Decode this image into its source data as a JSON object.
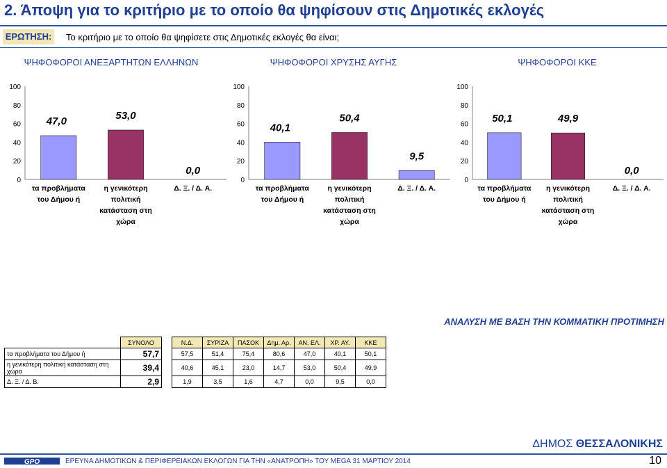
{
  "page": {
    "title": "2.  Άποψη για το κριτήριο με το οποίο θα ψηφίσουν στις Δημοτικές εκλογές",
    "question_label": "ΕΡΩΤΗΣΗ:",
    "question_text": "Το κριτήριο με το οποίο θα ψηφίσετε στις Δημοτικές εκλογές θα είναι;",
    "analysis_label": "ΑΝΑΛΥΣΗ ΜΕ ΒΑΣΗ ΤΗΝ ΚΟΜΜΑΤΙΚΗ ΠΡΟΤΙΜΗΣΗ",
    "municipality_prefix": "ΔΗΜΟΣ",
    "municipality_name": "ΘΕΣΣΑΛΟΝΙΚΗΣ",
    "footer_text": "ΕΡΕΥΝΑ ΔΗΜΟΤΙΚΩΝ & ΠΕΡΙΦΕΡΕΙΑΚΩΝ ΕΚΛΟΓΩΝ ΓΙΑ ΤΗΝ «ΑΝΑΤΡΟΠΗ» ΤΟΥ MEGA 31 ΜΑΡΤΙΟΥ 2014",
    "page_number": "10",
    "logo_text": "GPO"
  },
  "colors": {
    "accent_blue": "#1f3f94",
    "bar_local": "#9999ff",
    "bar_general": "#993366",
    "plot_bg": "#ffffff",
    "header_fill": "#f2e7b5"
  },
  "chart_data": [
    {
      "type": "bar",
      "title": "ΨΗΦΟΦΟΡΟΙ ΑΝΕΞΑΡΤΗΤΩΝ ΕΛΛΗΝΩΝ",
      "categories": [
        "τα προβλήματα του Δήμου ή",
        "η γενικότερη πολιτική κατάσταση στη χώρα",
        "Δ. Ξ. / Δ. Α."
      ],
      "values": [
        47.0,
        53.0,
        0.0
      ],
      "value_labels": [
        "47,0",
        "53,0",
        "0,0"
      ],
      "ylim": [
        0,
        100
      ],
      "yticks": [
        "0",
        "20",
        "40",
        "60",
        "80",
        "100"
      ],
      "grid": false
    },
    {
      "type": "bar",
      "title": "ΨΗΦΟΦΟΡΟΙ ΧΡΥΣΗΣ ΑΥΓΗΣ",
      "categories": [
        "τα προβλήματα του Δήμου ή",
        "η γενικότερη πολιτική κατάσταση στη χώρα",
        "Δ. Ξ. / Δ. Α."
      ],
      "values": [
        40.1,
        50.4,
        9.5
      ],
      "value_labels": [
        "40,1",
        "50,4",
        "9,5"
      ],
      "ylim": [
        0,
        100
      ],
      "yticks": [
        "0",
        "20",
        "40",
        "60",
        "80",
        "100"
      ],
      "grid": false
    },
    {
      "type": "bar",
      "title": "ΨΗΦΟΦΟΡΟΙ ΚΚΕ",
      "categories": [
        "τα προβλήματα του Δήμου ή",
        "η γενικότερη πολιτική κατάσταση στη χώρα",
        "Δ. Ξ. / Δ. Α."
      ],
      "values": [
        50.1,
        49.9,
        0.0
      ],
      "value_labels": [
        "50,1",
        "49,9",
        "0,0"
      ],
      "ylim": [
        0,
        100
      ],
      "yticks": [
        "0",
        "20",
        "40",
        "60",
        "80",
        "100"
      ],
      "grid": false
    }
  ],
  "table": {
    "columns": [
      "ΣΥΝΟΛΟ",
      "Ν.Δ.",
      "ΣΥΡΙΖΑ",
      "ΠΑΣΟΚ",
      "Δημ. Αρ.",
      "ΑΝ. ΕΛ.",
      "ΧΡ. ΑΥ.",
      "ΚΚΕ"
    ],
    "rows": [
      {
        "label": "τα προβλήματα του Δήμου ή",
        "total": "57,7",
        "values": [
          "57,5",
          "51,4",
          "75,4",
          "80,6",
          "47,0",
          "40,1",
          "50,1"
        ]
      },
      {
        "label": "η γενικότερη πολιτική κατάσταση στη χώρα",
        "total": "39,4",
        "values": [
          "40,6",
          "45,1",
          "23,0",
          "14,7",
          "53,0",
          "50,4",
          "49,9"
        ]
      },
      {
        "label": "Δ. Ξ. / Δ. Β.",
        "total": "2,9",
        "values": [
          "1,9",
          "3,5",
          "1,6",
          "4,7",
          "0,0",
          "9,5",
          "0,0"
        ]
      }
    ]
  }
}
